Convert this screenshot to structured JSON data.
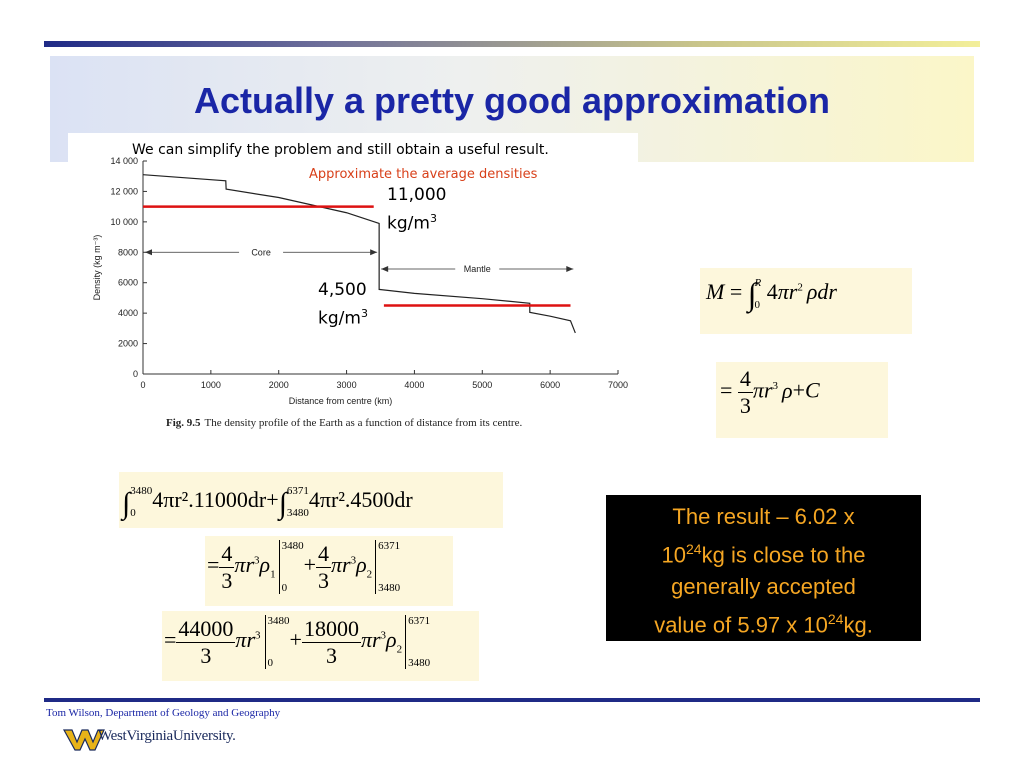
{
  "slide": {
    "title": "Actually a pretty good approximation",
    "subtitle": "We can simplify the problem and still obtain a useful result.",
    "note": "Approximate the average densities",
    "core_density": {
      "value": "11,000",
      "unit": "kg/m",
      "exp": "3"
    },
    "mantle_density": {
      "value": "4,500",
      "unit": "kg/m",
      "exp": "3"
    },
    "caption_label": "Fig. 9.5",
    "caption_text": "The density profile of the Earth as a function of distance from its centre.",
    "result": {
      "line1": "The result – 6.02 x",
      "line2_base": "10",
      "line2_exp": "24",
      "line2_rest": "kg is close to the",
      "line3": "generally accepted",
      "line4_pre": "value of 5.97 x 10",
      "line4_exp": "24",
      "line4_post": "kg."
    },
    "footer": "Tom Wilson, Department of Geology and Geography",
    "logo_text": "WestVirginiaUniversity."
  },
  "equations": {
    "eq1": {
      "lhs": "M",
      "lower": "0",
      "upper": "R",
      "coef": "4",
      "pi": "π",
      "r": "r",
      "pow": "2",
      "rho": "ρ",
      "dr": "dr"
    },
    "eq2": {
      "num": "4",
      "den": "3",
      "pi": "π",
      "r": "r",
      "pow": "3",
      "rho": "ρ",
      "plus": "+",
      "C": "C"
    },
    "eq3": {
      "a_lower": "0",
      "a_upper": "3480",
      "a_body": "4πr².11000dr",
      "b_lower": "3480",
      "b_upper": "6371",
      "b_body": "4πr².4500dr",
      "plus": "+"
    },
    "eq4": {
      "num": "4",
      "den": "3",
      "body1": "πr",
      "pow": "3",
      "rho1": "ρ",
      "sub1": "1",
      "lim1_up": "3480",
      "lim1_lo": "0",
      "plus": "+",
      "body2": "πr",
      "rho2": "ρ",
      "sub2": "2",
      "lim2_up": "6371",
      "lim2_lo": "3480"
    },
    "eq5": {
      "num1": "44000",
      "den": "3",
      "body1": "πr",
      "pow": "3",
      "lim1_up": "3480",
      "lim1_lo": "0",
      "plus": "+",
      "num2": "18000",
      "body2": "πr",
      "rho2": "ρ",
      "sub2": "2",
      "lim2_up": "6371",
      "lim2_lo": "3480"
    }
  },
  "colors": {
    "title": "#1a26a6",
    "result_text": "#f5a623",
    "approx_line": "#dd1111",
    "note": "#d8401a"
  },
  "chart_data": {
    "type": "line",
    "xlabel": "Distance from centre (km)",
    "ylabel": "Density (kg m⁻³)",
    "xlim": [
      0,
      7000
    ],
    "ylim": [
      0,
      14000
    ],
    "x_ticks": [
      "0",
      "1000",
      "2000",
      "3000",
      "4000",
      "5000",
      "6000",
      "7000"
    ],
    "y_ticks": [
      "0",
      "2000",
      "4000",
      "6000",
      "8000",
      "10 000",
      "12 000",
      "14 000"
    ],
    "series": [
      {
        "x": [
          0,
          1220,
          1225,
          2000,
          3000,
          3480,
          3480,
          4000,
          5000,
          5700,
          5700,
          6000,
          6300,
          6371
        ],
        "y": [
          13100,
          12700,
          12150,
          11600,
          10600,
          9900,
          5560,
          5300,
          4950,
          4650,
          4050,
          3800,
          3500,
          2700
        ]
      }
    ],
    "regions": [
      {
        "label": "Core",
        "x": [
          0,
          3480
        ],
        "y": 8000
      },
      {
        "label": "Mantle",
        "x": [
          3480,
          6371
        ],
        "y": 6900
      }
    ],
    "approximations": [
      {
        "x": [
          0,
          3400
        ],
        "y": 11000
      },
      {
        "x": [
          3550,
          6300
        ],
        "y": 4500
      }
    ]
  }
}
